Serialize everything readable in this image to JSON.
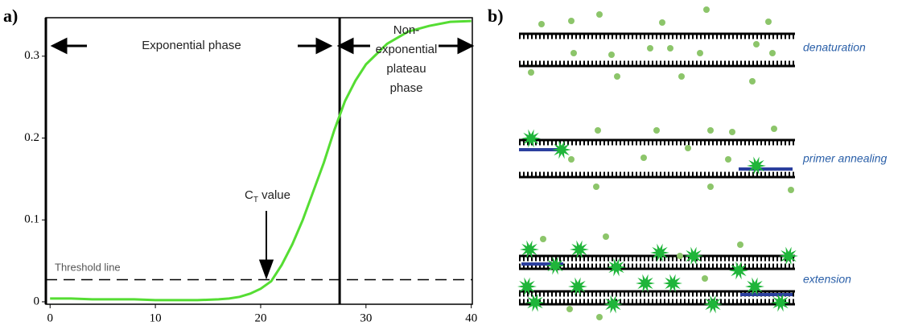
{
  "chart_data": {
    "type": "line",
    "panel_label": "a)",
    "x": [
      0,
      2,
      4,
      6,
      8,
      10,
      12,
      14,
      16,
      17,
      18,
      19,
      20,
      21,
      22,
      23,
      24,
      25,
      26,
      27,
      28,
      29,
      30,
      32,
      34,
      36,
      38,
      40
    ],
    "values": [
      0.004,
      0.004,
      0.003,
      0.003,
      0.003,
      0.002,
      0.002,
      0.002,
      0.003,
      0.004,
      0.006,
      0.01,
      0.016,
      0.025,
      0.045,
      0.07,
      0.1,
      0.135,
      0.17,
      0.21,
      0.245,
      0.27,
      0.29,
      0.315,
      0.33,
      0.337,
      0.342,
      0.343
    ],
    "color": "#55dd33",
    "xlim": [
      -0.4,
      40.1
    ],
    "xticks": [
      0,
      10,
      20,
      30,
      40
    ],
    "ylim": [
      -0.003,
      0.347
    ],
    "yticks": [
      0,
      0.1,
      0.2,
      0.3
    ],
    "threshold": 0.027,
    "phase_boundary": 27.5,
    "annotations": {
      "exponential": "Exponential phase",
      "plateau": [
        "Non-",
        "exponential",
        "plateau",
        "phase"
      ],
      "ct_main": "C",
      "ct_sub": "T",
      "ct_rest": " value",
      "threshold": "Threshold line"
    }
  },
  "diagram": {
    "panel_label": "b)",
    "steps": [
      "denaturation",
      "primer annealing",
      "extension"
    ]
  }
}
